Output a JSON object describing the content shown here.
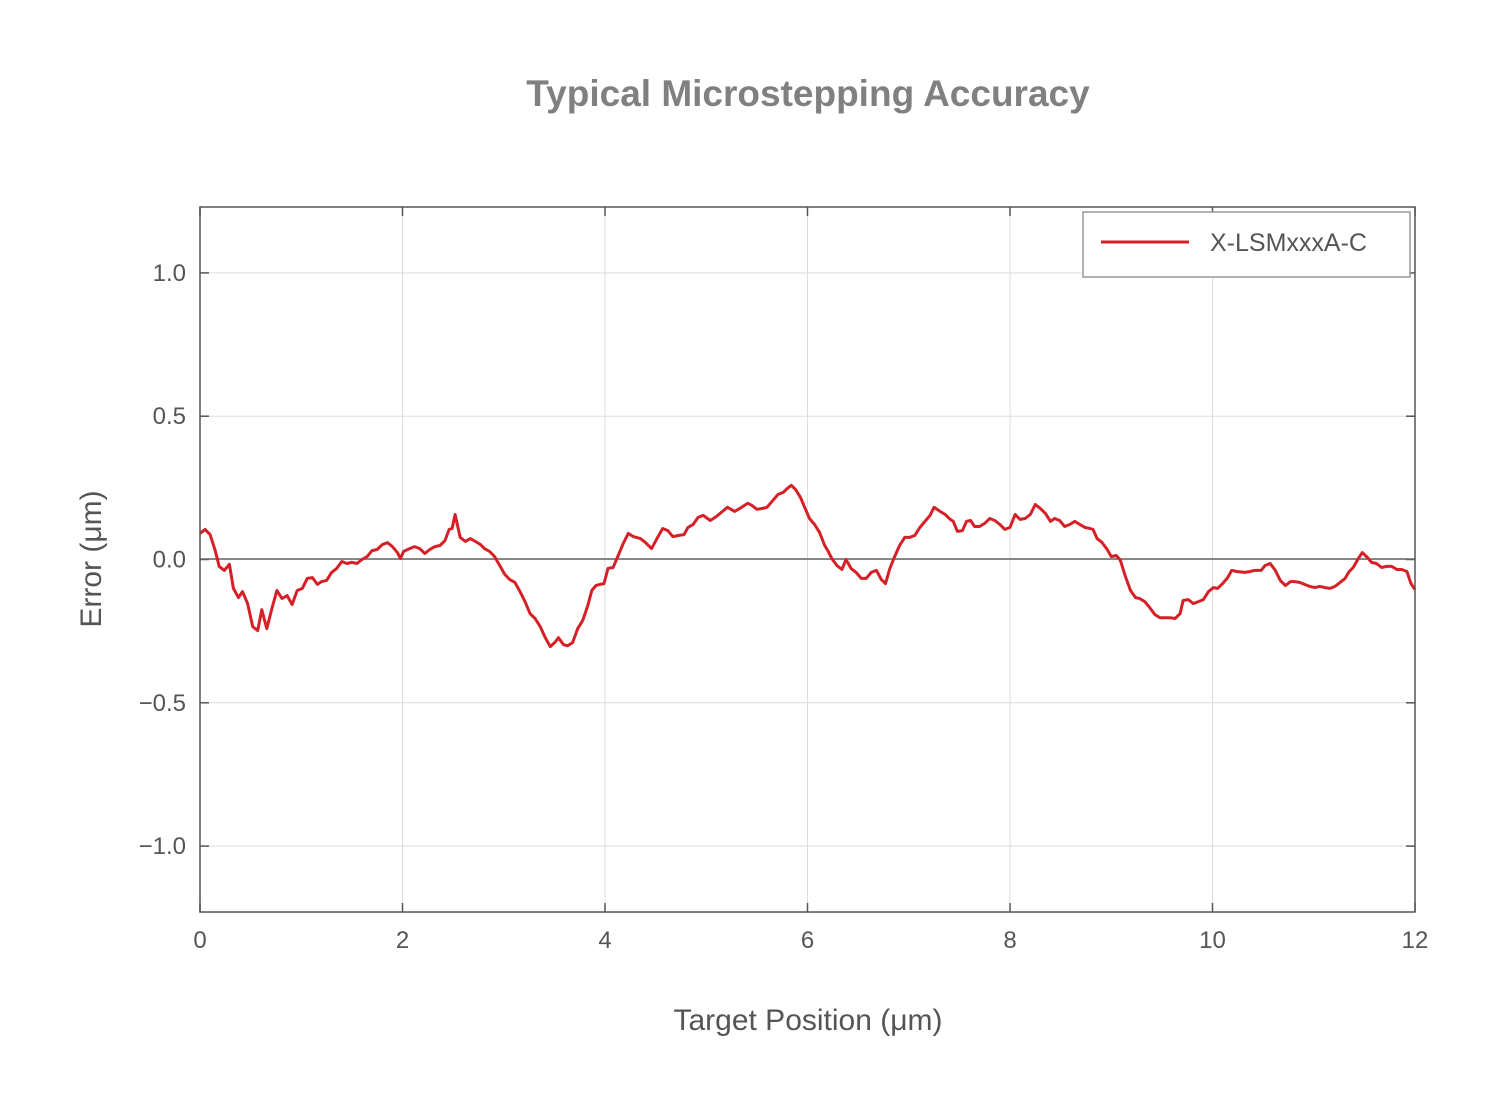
{
  "chart_data": {
    "type": "line",
    "title": "Typical Microstepping Accuracy",
    "xlabel": "Target Position (μm)",
    "ylabel": "Error (μm)",
    "xlim": [
      0,
      12
    ],
    "ylim": [
      -1.23,
      1.23
    ],
    "xticks": [
      0,
      2,
      4,
      6,
      8,
      10,
      12
    ],
    "xtick_labels": [
      "0",
      "2",
      "4",
      "6",
      "8",
      "10",
      "12"
    ],
    "yticks": [
      1.0,
      0.5,
      0.0,
      -0.5,
      -1.0
    ],
    "ytick_labels": [
      "1.0",
      "0.5",
      "0.0",
      "−0.5",
      "−1.0"
    ],
    "grid": true,
    "legend_position": "top-right",
    "series": [
      {
        "name": "X-LSMxxxA-C",
        "color": "#d62028",
        "points": [
          [
            0,
            0.091
          ],
          [
            0.05,
            0.105
          ],
          [
            0.1,
            0.087
          ],
          [
            0.15,
            0.031
          ],
          [
            0.19,
            -0.024
          ],
          [
            0.24,
            -0.038
          ],
          [
            0.29,
            -0.017
          ],
          [
            0.33,
            -0.101
          ],
          [
            0.38,
            -0.133
          ],
          [
            0.42,
            -0.112
          ],
          [
            0.47,
            -0.154
          ],
          [
            0.52,
            -0.234
          ],
          [
            0.57,
            -0.248
          ],
          [
            0.61,
            -0.175
          ],
          [
            0.66,
            -0.241
          ],
          [
            0.71,
            -0.171
          ],
          [
            0.76,
            -0.108
          ],
          [
            0.81,
            -0.136
          ],
          [
            0.86,
            -0.126
          ],
          [
            0.91,
            -0.157
          ],
          [
            0.96,
            -0.108
          ],
          [
            1.01,
            -0.101
          ],
          [
            1.06,
            -0.066
          ],
          [
            1.11,
            -0.063
          ],
          [
            1.16,
            -0.087
          ],
          [
            1.2,
            -0.077
          ],
          [
            1.25,
            -0.073
          ],
          [
            1.3,
            -0.045
          ],
          [
            1.35,
            -0.031
          ],
          [
            1.4,
            -0.007
          ],
          [
            1.45,
            -0.014
          ],
          [
            1.5,
            -0.01
          ],
          [
            1.55,
            -0.014
          ],
          [
            1.6,
            0
          ],
          [
            1.65,
            0.01
          ],
          [
            1.7,
            0.031
          ],
          [
            1.75,
            0.035
          ],
          [
            1.8,
            0.052
          ],
          [
            1.85,
            0.059
          ],
          [
            1.9,
            0.045
          ],
          [
            1.95,
            0.024
          ],
          [
            1.98,
            0.003
          ],
          [
            2.01,
            0.028
          ],
          [
            2.07,
            0.038
          ],
          [
            2.12,
            0.045
          ],
          [
            2.17,
            0.038
          ],
          [
            2.22,
            0.021
          ],
          [
            2.27,
            0.035
          ],
          [
            2.32,
            0.045
          ],
          [
            2.37,
            0.049
          ],
          [
            2.42,
            0.066
          ],
          [
            2.46,
            0.105
          ],
          [
            2.49,
            0.108
          ],
          [
            2.52,
            0.157
          ],
          [
            2.57,
            0.077
          ],
          [
            2.62,
            0.063
          ],
          [
            2.67,
            0.073
          ],
          [
            2.72,
            0.063
          ],
          [
            2.77,
            0.052
          ],
          [
            2.81,
            0.038
          ],
          [
            2.86,
            0.028
          ],
          [
            2.91,
            0.01
          ],
          [
            2.96,
            -0.021
          ],
          [
            3.01,
            -0.052
          ],
          [
            3.06,
            -0.07
          ],
          [
            3.11,
            -0.08
          ],
          [
            3.16,
            -0.112
          ],
          [
            3.21,
            -0.147
          ],
          [
            3.26,
            -0.189
          ],
          [
            3.31,
            -0.206
          ],
          [
            3.36,
            -0.234
          ],
          [
            3.41,
            -0.273
          ],
          [
            3.46,
            -0.304
          ],
          [
            3.51,
            -0.287
          ],
          [
            3.54,
            -0.273
          ],
          [
            3.59,
            -0.297
          ],
          [
            3.63,
            -0.301
          ],
          [
            3.68,
            -0.29
          ],
          [
            3.73,
            -0.241
          ],
          [
            3.78,
            -0.213
          ],
          [
            3.83,
            -0.161
          ],
          [
            3.87,
            -0.108
          ],
          [
            3.91,
            -0.091
          ],
          [
            3.95,
            -0.087
          ],
          [
            3.99,
            -0.084
          ],
          [
            4.03,
            -0.031
          ],
          [
            4.08,
            -0.028
          ],
          [
            4.13,
            0.014
          ],
          [
            4.18,
            0.056
          ],
          [
            4.23,
            0.091
          ],
          [
            4.28,
            0.08
          ],
          [
            4.35,
            0.073
          ],
          [
            4.4,
            0.059
          ],
          [
            4.46,
            0.038
          ],
          [
            4.52,
            0.077
          ],
          [
            4.57,
            0.108
          ],
          [
            4.62,
            0.101
          ],
          [
            4.67,
            0.08
          ],
          [
            4.73,
            0.084
          ],
          [
            4.78,
            0.087
          ],
          [
            4.82,
            0.112
          ],
          [
            4.87,
            0.122
          ],
          [
            4.92,
            0.147
          ],
          [
            4.97,
            0.154
          ],
          [
            5.04,
            0.136
          ],
          [
            5.1,
            0.15
          ],
          [
            5.16,
            0.168
          ],
          [
            5.21,
            0.182
          ],
          [
            5.28,
            0.168
          ],
          [
            5.33,
            0.178
          ],
          [
            5.41,
            0.196
          ],
          [
            5.45,
            0.189
          ],
          [
            5.5,
            0.175
          ],
          [
            5.55,
            0.178
          ],
          [
            5.6,
            0.182
          ],
          [
            5.65,
            0.203
          ],
          [
            5.71,
            0.227
          ],
          [
            5.76,
            0.234
          ],
          [
            5.8,
            0.248
          ],
          [
            5.84,
            0.259
          ],
          [
            5.88,
            0.245
          ],
          [
            5.93,
            0.217
          ],
          [
            5.98,
            0.175
          ],
          [
            6.02,
            0.143
          ],
          [
            6.07,
            0.122
          ],
          [
            6.12,
            0.094
          ],
          [
            6.17,
            0.049
          ],
          [
            6.2,
            0.031
          ],
          [
            6.24,
            0.003
          ],
          [
            6.29,
            -0.021
          ],
          [
            6.34,
            -0.035
          ],
          [
            6.38,
            0
          ],
          [
            6.43,
            -0.031
          ],
          [
            6.48,
            -0.045
          ],
          [
            6.53,
            -0.066
          ],
          [
            6.58,
            -0.066
          ],
          [
            6.63,
            -0.045
          ],
          [
            6.68,
            -0.038
          ],
          [
            6.73,
            -0.07
          ],
          [
            6.77,
            -0.084
          ],
          [
            6.81,
            -0.035
          ],
          [
            6.86,
            0.01
          ],
          [
            6.91,
            0.049
          ],
          [
            6.96,
            0.077
          ],
          [
            7.01,
            0.077
          ],
          [
            7.06,
            0.084
          ],
          [
            7.11,
            0.112
          ],
          [
            7.16,
            0.133
          ],
          [
            7.21,
            0.154
          ],
          [
            7.25,
            0.182
          ],
          [
            7.31,
            0.168
          ],
          [
            7.36,
            0.157
          ],
          [
            7.41,
            0.14
          ],
          [
            7.44,
            0.133
          ],
          [
            7.48,
            0.098
          ],
          [
            7.53,
            0.101
          ],
          [
            7.57,
            0.133
          ],
          [
            7.61,
            0.136
          ],
          [
            7.65,
            0.115
          ],
          [
            7.7,
            0.115
          ],
          [
            7.75,
            0.126
          ],
          [
            7.8,
            0.143
          ],
          [
            7.85,
            0.136
          ],
          [
            7.9,
            0.122
          ],
          [
            7.95,
            0.105
          ],
          [
            8.0,
            0.112
          ],
          [
            8.05,
            0.157
          ],
          [
            8.1,
            0.14
          ],
          [
            8.15,
            0.143
          ],
          [
            8.2,
            0.157
          ],
          [
            8.25,
            0.192
          ],
          [
            8.3,
            0.178
          ],
          [
            8.35,
            0.161
          ],
          [
            8.4,
            0.133
          ],
          [
            8.44,
            0.143
          ],
          [
            8.49,
            0.136
          ],
          [
            8.54,
            0.115
          ],
          [
            8.59,
            0.122
          ],
          [
            8.64,
            0.133
          ],
          [
            8.69,
            0.122
          ],
          [
            8.74,
            0.112
          ],
          [
            8.79,
            0.108
          ],
          [
            8.82,
            0.105
          ],
          [
            8.86,
            0.073
          ],
          [
            8.91,
            0.059
          ],
          [
            8.96,
            0.035
          ],
          [
            9.0,
            0.01
          ],
          [
            9.05,
            0.014
          ],
          [
            9.09,
            -0.003
          ],
          [
            9.14,
            -0.059
          ],
          [
            9.19,
            -0.108
          ],
          [
            9.24,
            -0.133
          ],
          [
            9.28,
            -0.136
          ],
          [
            9.33,
            -0.147
          ],
          [
            9.38,
            -0.168
          ],
          [
            9.43,
            -0.192
          ],
          [
            9.48,
            -0.203
          ],
          [
            9.53,
            -0.203
          ],
          [
            9.58,
            -0.203
          ],
          [
            9.63,
            -0.206
          ],
          [
            9.68,
            -0.189
          ],
          [
            9.71,
            -0.143
          ],
          [
            9.76,
            -0.14
          ],
          [
            9.81,
            -0.154
          ],
          [
            9.86,
            -0.147
          ],
          [
            9.91,
            -0.14
          ],
          [
            9.96,
            -0.112
          ],
          [
            10.01,
            -0.098
          ],
          [
            10.05,
            -0.101
          ],
          [
            10.1,
            -0.084
          ],
          [
            10.15,
            -0.063
          ],
          [
            10.19,
            -0.038
          ],
          [
            10.24,
            -0.042
          ],
          [
            10.32,
            -0.045
          ],
          [
            10.37,
            -0.042
          ],
          [
            10.42,
            -0.038
          ],
          [
            10.48,
            -0.038
          ],
          [
            10.52,
            -0.021
          ],
          [
            10.57,
            -0.014
          ],
          [
            10.62,
            -0.038
          ],
          [
            10.67,
            -0.073
          ],
          [
            10.72,
            -0.091
          ],
          [
            10.77,
            -0.077
          ],
          [
            10.81,
            -0.077
          ],
          [
            10.86,
            -0.08
          ],
          [
            10.91,
            -0.087
          ],
          [
            10.96,
            -0.094
          ],
          [
            11.01,
            -0.098
          ],
          [
            11.06,
            -0.094
          ],
          [
            11.11,
            -0.098
          ],
          [
            11.16,
            -0.101
          ],
          [
            11.21,
            -0.094
          ],
          [
            11.26,
            -0.08
          ],
          [
            11.31,
            -0.066
          ],
          [
            11.35,
            -0.042
          ],
          [
            11.39,
            -0.028
          ],
          [
            11.44,
            0.003
          ],
          [
            11.48,
            0.024
          ],
          [
            11.53,
            0.007
          ],
          [
            11.57,
            -0.01
          ],
          [
            11.62,
            -0.014
          ],
          [
            11.67,
            -0.028
          ],
          [
            11.72,
            -0.024
          ],
          [
            11.77,
            -0.024
          ],
          [
            11.82,
            -0.035
          ],
          [
            11.87,
            -0.035
          ],
          [
            11.92,
            -0.042
          ],
          [
            11.96,
            -0.084
          ],
          [
            12.0,
            -0.105
          ]
        ]
      }
    ]
  }
}
